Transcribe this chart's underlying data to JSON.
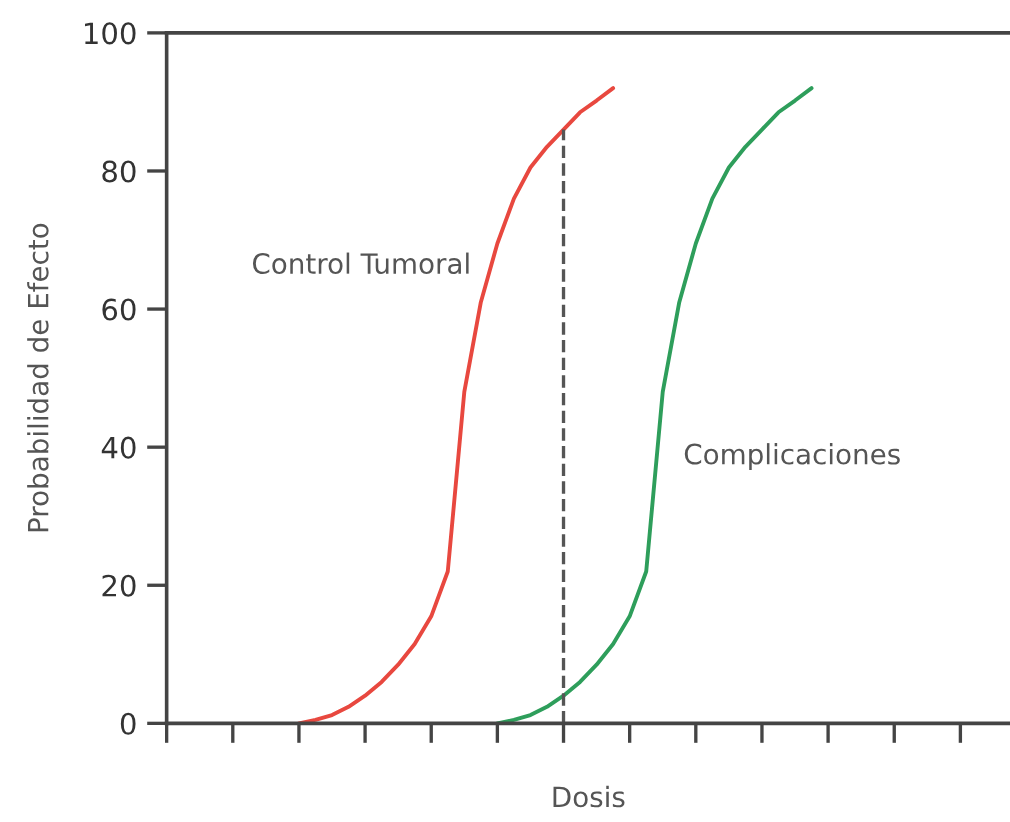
{
  "chart_data": {
    "type": "line",
    "xlabel": "Dosis",
    "ylabel": "Probabilidad de Efecto",
    "categories": [
      null,
      null,
      null,
      null,
      null,
      null,
      null,
      null,
      null,
      null,
      null,
      null,
      null,
      null,
      null,
      null,
      null,
      null,
      null,
      null,
      null,
      null,
      null,
      null,
      null,
      null,
      null,
      null,
      null,
      null,
      null,
      null,
      null,
      null,
      null,
      null,
      null,
      null,
      null,
      null,
      null,
      null,
      null,
      null,
      null,
      null,
      null,
      null,
      null,
      null,
      null,
      null
    ],
    "ylim": [
      0,
      100
    ],
    "yticks": [
      0,
      20,
      40,
      60,
      80,
      100
    ],
    "series": [
      {
        "name": "Control Tumoral",
        "color": "#e8483f",
        "values": [
          null,
          null,
          null,
          null,
          null,
          null,
          null,
          null,
          0,
          0.5,
          1.2,
          2.4,
          4,
          6,
          8.5,
          11.5,
          15.5,
          22,
          48,
          61,
          69.5,
          76,
          80.5,
          83.5,
          86,
          88.5,
          90.2,
          92,
          null,
          null,
          null,
          null,
          null,
          null,
          null,
          null,
          null,
          null,
          null,
          null,
          null,
          null,
          null,
          null,
          null,
          null,
          null,
          null,
          null,
          null,
          null,
          null
        ]
      },
      {
        "name": "Complicaciones",
        "color": "#2e9e5b",
        "values": [
          null,
          null,
          null,
          null,
          null,
          null,
          null,
          null,
          null,
          null,
          null,
          null,
          null,
          null,
          null,
          null,
          null,
          null,
          null,
          null,
          0,
          0.5,
          1.2,
          2.4,
          4,
          6,
          8.5,
          11.5,
          15.5,
          22,
          48,
          61,
          69.5,
          76,
          80.5,
          83.5,
          86,
          88.5,
          90.2,
          92,
          null,
          null,
          null,
          null,
          null,
          null,
          null,
          null,
          null,
          null,
          null,
          null
        ]
      }
    ],
    "grid": false,
    "legend": false,
    "marker": "none",
    "line_style": "solid"
  }
}
